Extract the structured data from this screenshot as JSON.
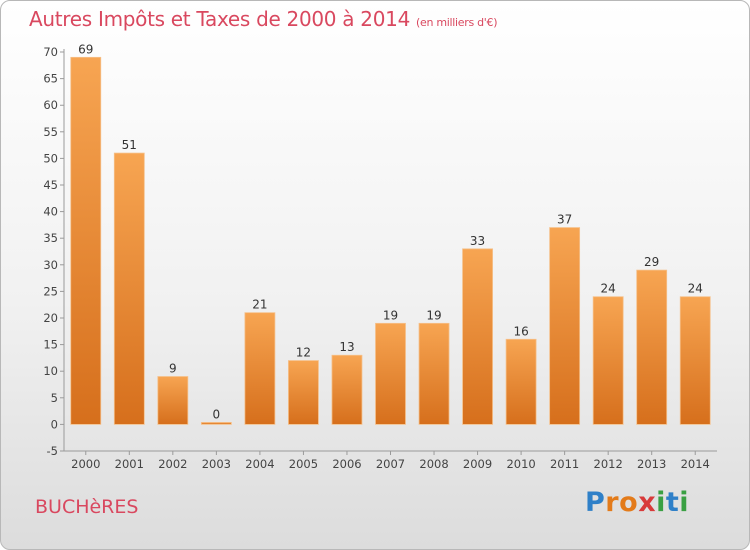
{
  "header": {
    "title": "Autres Impôts et Taxes de 2000 à 2014",
    "unit": "(en milliers d'€)"
  },
  "footer": {
    "commune": "BUCHèRES",
    "logo_letters": [
      {
        "ch": "P",
        "color": "#2f80c8"
      },
      {
        "ch": "r",
        "color": "#e37b1a"
      },
      {
        "ch": "o",
        "color": "#e37b1a"
      },
      {
        "ch": "x",
        "color": "#d83a3a"
      },
      {
        "ch": "i",
        "color": "#3aa043"
      },
      {
        "ch": "t",
        "color": "#2f80c8"
      },
      {
        "ch": "i",
        "color": "#3aa043"
      }
    ]
  },
  "colors": {
    "title": "#d9485f",
    "bar_light": "#f7a552",
    "bar_dark": "#d66f1c"
  },
  "chart_data": {
    "type": "bar",
    "title": "Autres Impôts et Taxes de 2000 à 2014",
    "subtitle": "(en milliers d'€)",
    "xlabel": "",
    "ylabel": "",
    "categories": [
      "2000",
      "2001",
      "2002",
      "2003",
      "2004",
      "2005",
      "2006",
      "2007",
      "2008",
      "2009",
      "2010",
      "2011",
      "2012",
      "2013",
      "2014"
    ],
    "values": [
      69,
      51,
      9,
      0,
      21,
      12,
      13,
      19,
      19,
      33,
      16,
      37,
      24,
      29,
      24
    ],
    "ylim": [
      -5,
      70
    ],
    "yticks": [
      -5,
      0,
      5,
      10,
      15,
      20,
      25,
      30,
      35,
      40,
      45,
      50,
      55,
      60,
      65,
      70
    ],
    "grid": false,
    "legend": "none",
    "data_labels": true
  }
}
